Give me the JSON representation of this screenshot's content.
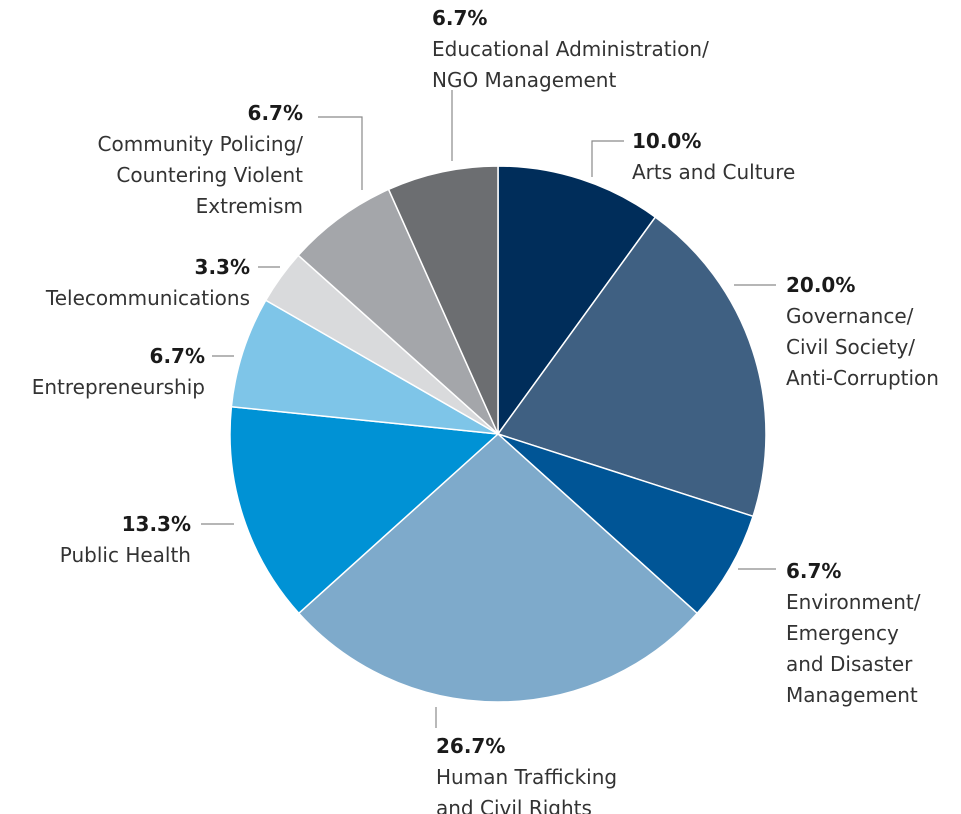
{
  "chart_data": {
    "type": "pie",
    "title": "",
    "slices": [
      {
        "percent_label": "10.0%",
        "value": 10.0,
        "label_lines": [
          "Arts and Culture"
        ],
        "color": "#002d5a"
      },
      {
        "percent_label": "20.0%",
        "value": 20.0,
        "label_lines": [
          "Governance/",
          "Civil Society/",
          "Anti-Corruption"
        ],
        "color": "#3f6082"
      },
      {
        "percent_label": "6.7%",
        "value": 6.7,
        "label_lines": [
          "Environment/",
          "Emergency",
          "and Disaster",
          "Management"
        ],
        "color": "#005596"
      },
      {
        "percent_label": "26.7%",
        "value": 26.7,
        "label_lines": [
          "Human Trafficking",
          "and Civil Rights"
        ],
        "color": "#7eaacb"
      },
      {
        "percent_label": "13.3%",
        "value": 13.3,
        "label_lines": [
          "Public Health"
        ],
        "color": "#0092d5"
      },
      {
        "percent_label": "6.7%",
        "value": 6.7,
        "label_lines": [
          "Entrepreneurship"
        ],
        "color": "#7ec5e8"
      },
      {
        "percent_label": "3.3%",
        "value": 3.3,
        "label_lines": [
          "Telecommunications"
        ],
        "color": "#d9dadc"
      },
      {
        "percent_label": "6.7%",
        "value": 6.7,
        "label_lines": [
          "Community Policing/",
          "Countering Violent",
          "Extremism"
        ],
        "color": "#a4a6aa"
      },
      {
        "percent_label": "6.7%",
        "value": 6.7,
        "label_lines": [
          "Educational Administration/",
          "NGO Management"
        ],
        "color": "#6c6e71"
      }
    ]
  }
}
